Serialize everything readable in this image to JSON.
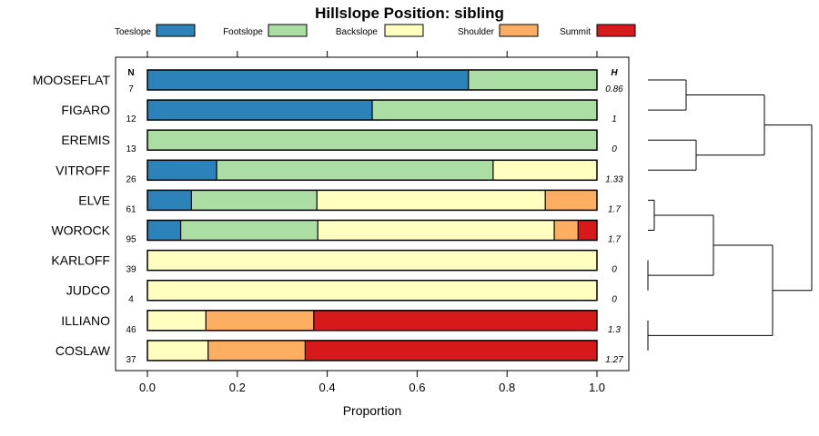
{
  "chart_data": {
    "type": "bar",
    "stacked": true,
    "orientation": "horizontal",
    "title": "Hillslope Position: sibling",
    "xlabel": "Proportion",
    "xlim": [
      0,
      1
    ],
    "xticks": [
      "0.0",
      "0.2",
      "0.4",
      "0.6",
      "0.8",
      "1.0"
    ],
    "n_header": "N",
    "h_header": "H",
    "legend": [
      {
        "name": "Toeslope",
        "color": "#2B83BA"
      },
      {
        "name": "Footslope",
        "color": "#ABDDA4"
      },
      {
        "name": "Backslope",
        "color": "#FFFFBF"
      },
      {
        "name": "Shoulder",
        "color": "#FDAE61"
      },
      {
        "name": "Summit",
        "color": "#D7191C"
      }
    ],
    "rows": [
      {
        "label": "MOOSEFLAT",
        "n": "7",
        "h": "0.86",
        "values": [
          0.714,
          0.286,
          0,
          0,
          0
        ]
      },
      {
        "label": "FIGARO",
        "n": "12",
        "h": "1",
        "values": [
          0.5,
          0.5,
          0,
          0,
          0
        ]
      },
      {
        "label": "EREMIS",
        "n": "13",
        "h": "0",
        "values": [
          0,
          1,
          0,
          0,
          0
        ]
      },
      {
        "label": "VITROFF",
        "n": "26",
        "h": "1.33",
        "values": [
          0.154,
          0.615,
          0.231,
          0,
          0
        ]
      },
      {
        "label": "ELVE",
        "n": "61",
        "h": "1.7",
        "values": [
          0.098,
          0.279,
          0.508,
          0.115,
          0
        ]
      },
      {
        "label": "WOROCK",
        "n": "95",
        "h": "1.7",
        "values": [
          0.074,
          0.305,
          0.526,
          0.053,
          0.042
        ]
      },
      {
        "label": "KARLOFF",
        "n": "39",
        "h": "0",
        "values": [
          0,
          0,
          1,
          0,
          0
        ]
      },
      {
        "label": "JUDCO",
        "n": "4",
        "h": "0",
        "values": [
          0,
          0,
          1,
          0,
          0
        ]
      },
      {
        "label": "ILLIANO",
        "n": "46",
        "h": "1.3",
        "values": [
          0,
          0,
          0.13,
          0.24,
          0.63
        ]
      },
      {
        "label": "COSLAW",
        "n": "37",
        "h": "1.27",
        "values": [
          0,
          0,
          0.135,
          0.216,
          0.649
        ]
      }
    ],
    "dendrogram": {
      "merges": [
        {
          "a": "MOOSEFLAT",
          "b": "FIGARO",
          "height": 0.42
        },
        {
          "a": "EREMIS",
          "b": "VITROFF",
          "height": 0.53
        },
        {
          "a": "ELVE",
          "b": "WOROCK",
          "height": 0.07
        },
        {
          "a": "KARLOFF",
          "b": "JUDCO",
          "height": 0.0
        },
        {
          "a": "ILLIANO",
          "b": "COSLAW",
          "height": 0.0
        },
        {
          "a": "ELVE+WOROCK",
          "b": "KARLOFF+JUDCO",
          "height": 0.72
        },
        {
          "a": "MOOSEFLAT+FIGARO",
          "b": "EREMIS+VITROFF",
          "height": 1.28
        },
        {
          "a": "ELVE+WOROCK+KARLOFF+JUDCO",
          "b": "ILLIANO+COSLAW",
          "height": 1.37
        },
        {
          "a": "top-group",
          "b": "bottom-group",
          "height": 1.8
        }
      ]
    }
  }
}
